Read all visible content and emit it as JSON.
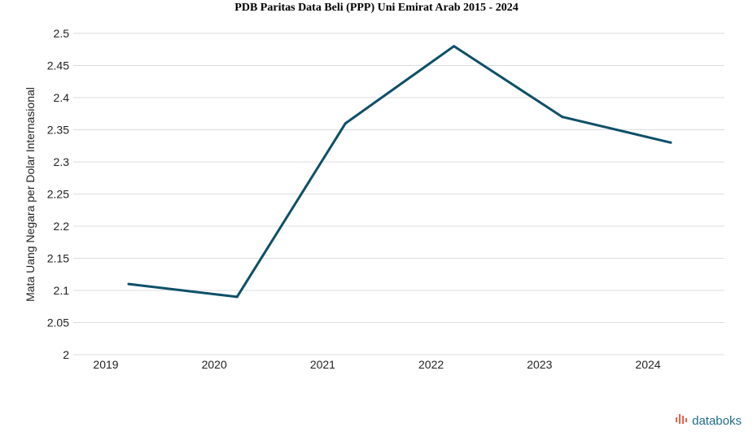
{
  "chart_data": {
    "type": "line",
    "title": "PDB Paritas Data Beli (PPP) Uni Emirat Arab 2015 - 2024",
    "xlabel": "",
    "ylabel": "Mata Uang Negara per Dolar Internasional",
    "categories": [
      "2019",
      "2020",
      "2021",
      "2022",
      "2023",
      "2024"
    ],
    "series": [
      {
        "values": [
          2.11,
          2.09,
          2.36,
          2.48,
          2.37,
          2.33
        ]
      }
    ],
    "ylim": [
      2,
      2.5
    ],
    "yticks": [
      "2",
      "2.05",
      "2.1",
      "2.15",
      "2.2",
      "2.25",
      "2.3",
      "2.35",
      "2.4",
      "2.45",
      "2.5"
    ],
    "grid": true,
    "line_color": "#0d5068",
    "grid_color": "#dddddd"
  },
  "brand": {
    "text": "databoks",
    "icon": "databoks-logo-icon",
    "color": "#1f6f8b",
    "icon_color": "#e8624a"
  }
}
